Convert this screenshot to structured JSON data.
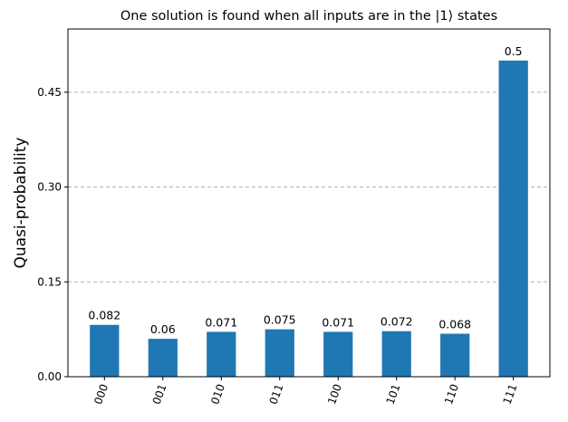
{
  "chart_data": {
    "type": "bar",
    "title": "One solution is found when all inputs are in the |1⟩ states",
    "xlabel": "",
    "ylabel": "Quasi-probability",
    "categories": [
      "000",
      "001",
      "010",
      "011",
      "100",
      "101",
      "110",
      "111"
    ],
    "values": [
      0.082,
      0.06,
      0.071,
      0.075,
      0.071,
      0.072,
      0.068,
      0.5
    ],
    "value_labels": [
      "0.082",
      "0.06",
      "0.071",
      "0.075",
      "0.071",
      "0.072",
      "0.068",
      "0.5"
    ],
    "yticks": [
      0,
      0.15,
      0.3,
      0.45
    ],
    "ytick_labels": [
      "0.00",
      "0.15",
      "0.30",
      "0.45"
    ],
    "ylim": [
      0,
      0.55
    ],
    "grid": "y-dashed",
    "bar_color": "#1f77b4",
    "xtick_rotation": 70
  }
}
